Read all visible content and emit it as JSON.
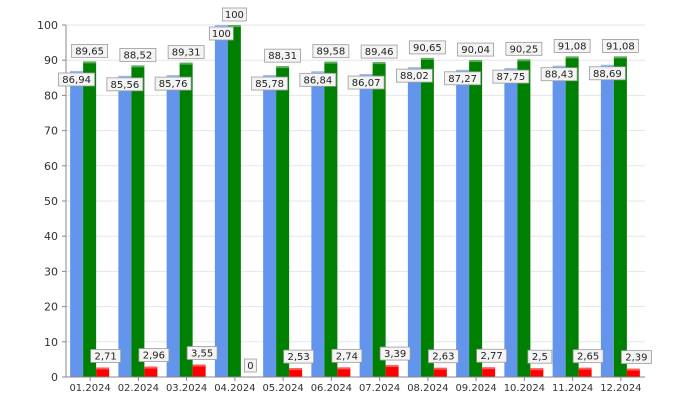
{
  "chart_data": {
    "type": "bar",
    "categories": [
      "01.2024",
      "02.2024",
      "03.2024",
      "04.2024",
      "05.2024",
      "06.2024",
      "07.2024",
      "08.2024",
      "09.2024",
      "10.2024",
      "11.2024",
      "12.2024"
    ],
    "series": [
      {
        "color": "#6495ED",
        "values": [
          86.94,
          85.56,
          85.76,
          100,
          85.78,
          86.84,
          86.07,
          88.02,
          87.27,
          87.75,
          88.43,
          88.69
        ],
        "labels": [
          "86,94",
          "85,56",
          "85,76",
          "100",
          "85,78",
          "86,84",
          "86,07",
          "88,02",
          "87,27",
          "87,75",
          "88,43",
          "88,69"
        ]
      },
      {
        "color": "#008000",
        "values": [
          89.65,
          88.52,
          89.31,
          100,
          88.31,
          89.58,
          89.46,
          90.65,
          90.04,
          90.25,
          91.08,
          91.08
        ],
        "labels": [
          "89,65",
          "88,52",
          "89,31",
          "100",
          "88,31",
          "89,58",
          "89,46",
          "90,65",
          "90,04",
          "90,25",
          "91,08",
          "91,08"
        ]
      },
      {
        "color": "#FF0000",
        "values": [
          2.71,
          2.96,
          3.55,
          0,
          2.53,
          2.74,
          3.39,
          2.63,
          2.77,
          2.5,
          2.65,
          2.39
        ],
        "labels": [
          "2,71",
          "2,96",
          "3,55",
          "0",
          "2,53",
          "2,74",
          "3,39",
          "2,63",
          "2,77",
          "2,5",
          "2,65",
          "2,39"
        ]
      }
    ],
    "ylim": [
      0,
      100
    ],
    "yticks": [
      "0",
      "10",
      "20",
      "30",
      "40",
      "50",
      "60",
      "70",
      "80",
      "90",
      "100"
    ],
    "grid": true,
    "title": "",
    "xlabel": "",
    "ylabel": ""
  }
}
